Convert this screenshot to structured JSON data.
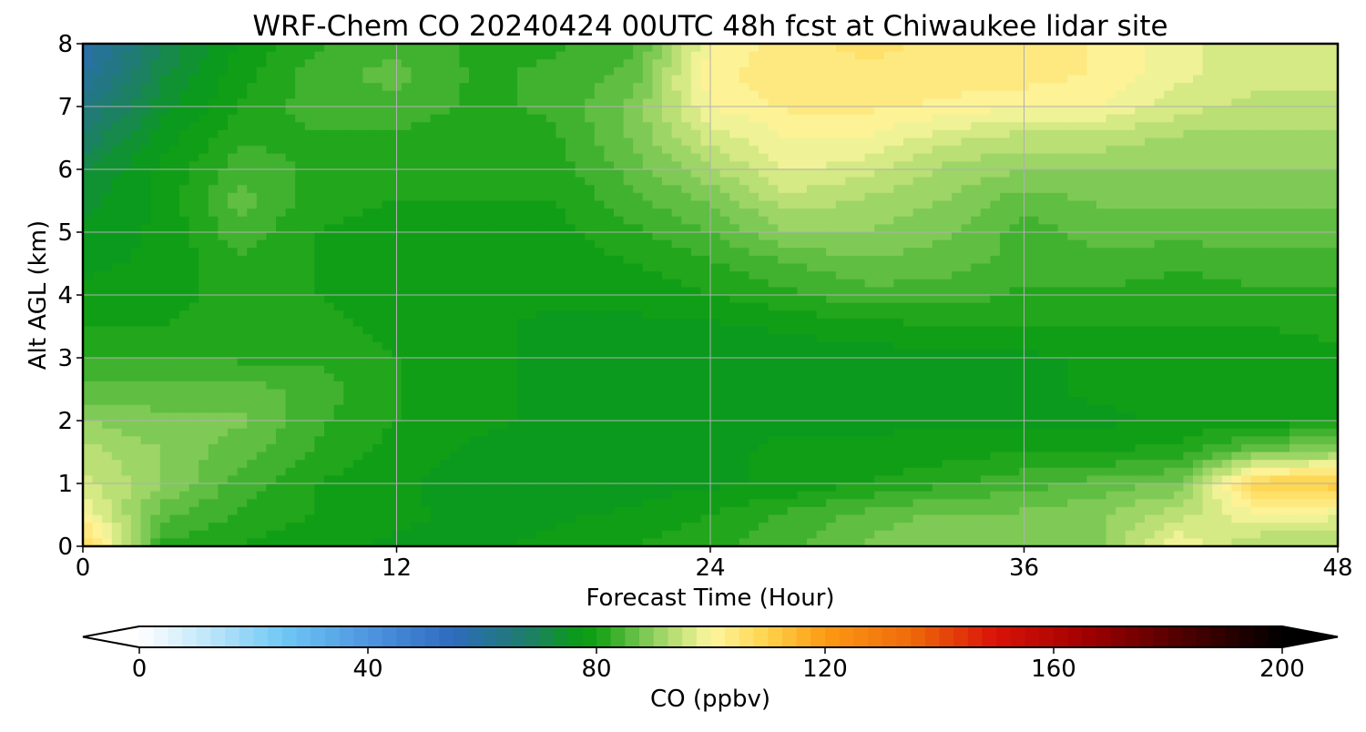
{
  "chart_data": {
    "type": "heatmap",
    "title": "WRF-Chem CO  20240424 00UTC 48h fcst at Chiwaukee lidar site",
    "xlabel": "Forecast Time (Hour)",
    "ylabel": "Alt AGL (km)",
    "xlim": [
      0,
      48
    ],
    "ylim": [
      0,
      8
    ],
    "x_ticks": [
      0,
      12,
      24,
      36,
      48
    ],
    "y_ticks": [
      0,
      1,
      2,
      3,
      4,
      5,
      6,
      7,
      8
    ],
    "grid": true,
    "x_hours": [
      0,
      3,
      6,
      9,
      12,
      15,
      18,
      21,
      24,
      27,
      30,
      33,
      36,
      39,
      42,
      45,
      48
    ],
    "z_km": [
      0,
      0.5,
      1,
      1.5,
      2,
      2.5,
      3,
      3.5,
      4,
      4.5,
      5,
      5.5,
      6,
      6.5,
      7,
      7.5,
      8
    ],
    "values_ppbv": [
      [
        110,
        82,
        80,
        78,
        77,
        77,
        78,
        80,
        82,
        84,
        88,
        90,
        88,
        90,
        100,
        92,
        92
      ],
      [
        100,
        86,
        82,
        80,
        78,
        77,
        77,
        78,
        80,
        83,
        86,
        88,
        88,
        90,
        94,
        100,
        98
      ],
      [
        96,
        90,
        84,
        80,
        78,
        76,
        75,
        76,
        77,
        78,
        80,
        82,
        84,
        86,
        88,
        110,
        112
      ],
      [
        94,
        90,
        86,
        82,
        79,
        77,
        77,
        77,
        77,
        78,
        78,
        79,
        80,
        80,
        81,
        88,
        90
      ],
      [
        90,
        88,
        88,
        83,
        80,
        78,
        77,
        77,
        77,
        77,
        77,
        77,
        77,
        77,
        78,
        78,
        80
      ],
      [
        86,
        86,
        86,
        84,
        80,
        78,
        77,
        77,
        77,
        77,
        77,
        77,
        77,
        78,
        78,
        78,
        78
      ],
      [
        82,
        82,
        82,
        82,
        80,
        78,
        77,
        77,
        76,
        76,
        76,
        77,
        77,
        78,
        78,
        78,
        79
      ],
      [
        80,
        80,
        82,
        81,
        79,
        78,
        77,
        77,
        77,
        78,
        79,
        80,
        80,
        80,
        80,
        80,
        81
      ],
      [
        78,
        79,
        81,
        80,
        78,
        78,
        78,
        78,
        80,
        82,
        84,
        84,
        82,
        82,
        81,
        82,
        82
      ],
      [
        77,
        78,
        82,
        80,
        78,
        78,
        78,
        80,
        82,
        85,
        87,
        86,
        84,
        84,
        83,
        84,
        84
      ],
      [
        76,
        78,
        84,
        80,
        79,
        79,
        79,
        82,
        85,
        90,
        90,
        88,
        84,
        86,
        86,
        86,
        86
      ],
      [
        74,
        78,
        86,
        81,
        80,
        80,
        80,
        84,
        88,
        94,
        92,
        90,
        86,
        88,
        88,
        88,
        88
      ],
      [
        72,
        78,
        84,
        82,
        81,
        80,
        81,
        86,
        92,
        98,
        96,
        92,
        90,
        90,
        90,
        90,
        90
      ],
      [
        68,
        76,
        82,
        82,
        82,
        81,
        82,
        88,
        96,
        100,
        100,
        96,
        94,
        94,
        92,
        92,
        92
      ],
      [
        64,
        74,
        80,
        84,
        84,
        82,
        83,
        88,
        100,
        103,
        103,
        102,
        100,
        100,
        96,
        94,
        94
      ],
      [
        60,
        72,
        79,
        84,
        86,
        82,
        83,
        86,
        102,
        104,
        104,
        104,
        104,
        102,
        98,
        96,
        96
      ],
      [
        58,
        70,
        78,
        82,
        84,
        82,
        82,
        84,
        100,
        104,
        106,
        104,
        104,
        102,
        98,
        96,
        96
      ]
    ],
    "colorbar": {
      "label": "CO  (ppbv)",
      "vmin": 0,
      "vmax": 200,
      "ticks": [
        0,
        40,
        80,
        120,
        160,
        200
      ],
      "extend": "both",
      "step": 2.5,
      "color_stops": [
        [
          0,
          "#ffffff"
        ],
        [
          12,
          "#bfe6fa"
        ],
        [
          25,
          "#6fc8f5"
        ],
        [
          42,
          "#4a8fde"
        ],
        [
          55,
          "#2e6bbd"
        ],
        [
          68,
          "#1e7d6a"
        ],
        [
          76,
          "#0a9a1e"
        ],
        [
          80,
          "#12a012"
        ],
        [
          85,
          "#50b838"
        ],
        [
          90,
          "#8fd060"
        ],
        [
          95,
          "#c8e47a"
        ],
        [
          100,
          "#fdf7a0"
        ],
        [
          110,
          "#fed24a"
        ],
        [
          120,
          "#fc9a14"
        ],
        [
          135,
          "#ef6a0a"
        ],
        [
          150,
          "#d81208"
        ],
        [
          165,
          "#a40000"
        ],
        [
          180,
          "#5a0000"
        ],
        [
          200,
          "#000000"
        ]
      ]
    }
  }
}
